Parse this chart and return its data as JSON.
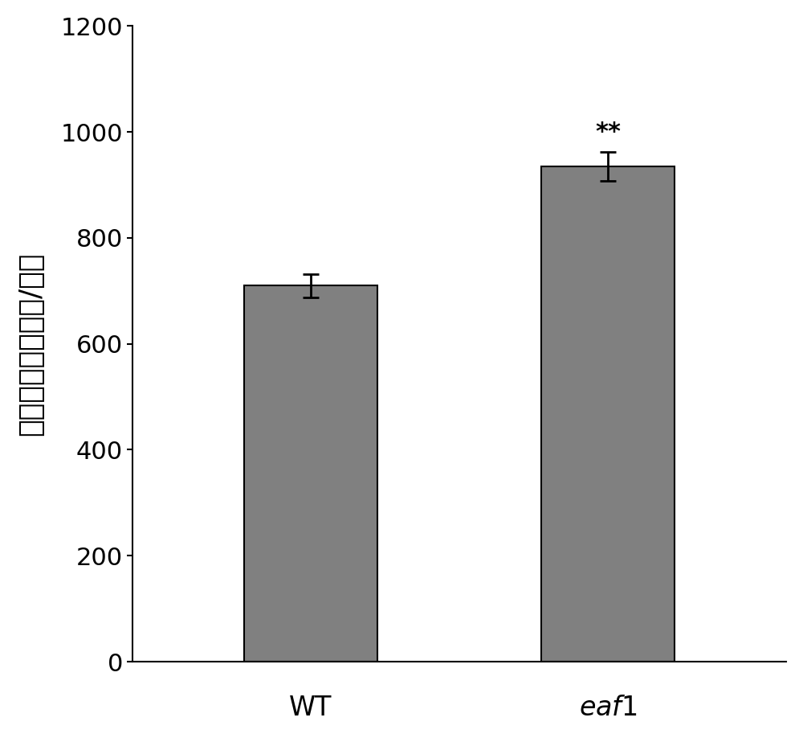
{
  "categories": [
    "WT",
    "eaf1"
  ],
  "values": [
    710,
    935
  ],
  "errors": [
    22,
    28
  ],
  "bar_color": "#808080",
  "bar_edge_color": "#000000",
  "bar_width": 0.45,
  "ylabel_chars": [
    "花",
    "青",
    "素",
    "含",
    "量",
    "（微克/克）"
  ],
  "ylim": [
    0,
    1200
  ],
  "yticks": [
    0,
    200,
    400,
    600,
    800,
    1000,
    1200
  ],
  "significance": [
    "",
    "**"
  ],
  "significance_fontsize": 22,
  "ylabel_fontsize": 26,
  "tick_fontsize": 22,
  "xtick_fontsize": 24,
  "background_color": "#ffffff"
}
